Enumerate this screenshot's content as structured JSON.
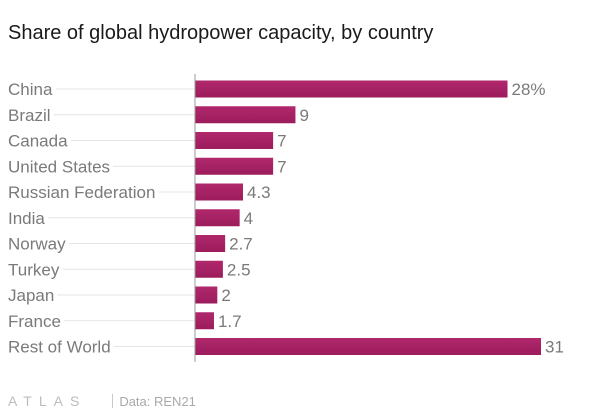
{
  "title": "Share of global hydropower capacity, by country",
  "colors": {
    "bar": "#9c1c5c",
    "axis": "#999999",
    "guide": "#e4e4e4",
    "label": "#7a7a7a"
  },
  "footer": {
    "logo": "ATLAS",
    "source": "Data: REN21"
  },
  "chart_data": {
    "type": "bar",
    "orientation": "horizontal",
    "title": "Share of global hydropower capacity, by country",
    "categories": [
      "China",
      "Brazil",
      "Canada",
      "United States",
      "Russian Federation",
      "India",
      "Norway",
      "Turkey",
      "Japan",
      "France",
      "Rest of World"
    ],
    "values": [
      28,
      9,
      7,
      7,
      4.3,
      4,
      2.7,
      2.5,
      2,
      1.7,
      31
    ],
    "value_labels": [
      "28%",
      "9",
      "7",
      "7",
      "4.3",
      "4",
      "2.7",
      "2.5",
      "2",
      "1.7",
      "31"
    ],
    "xlim": [
      0,
      31
    ],
    "grid": false,
    "legend": "none"
  }
}
